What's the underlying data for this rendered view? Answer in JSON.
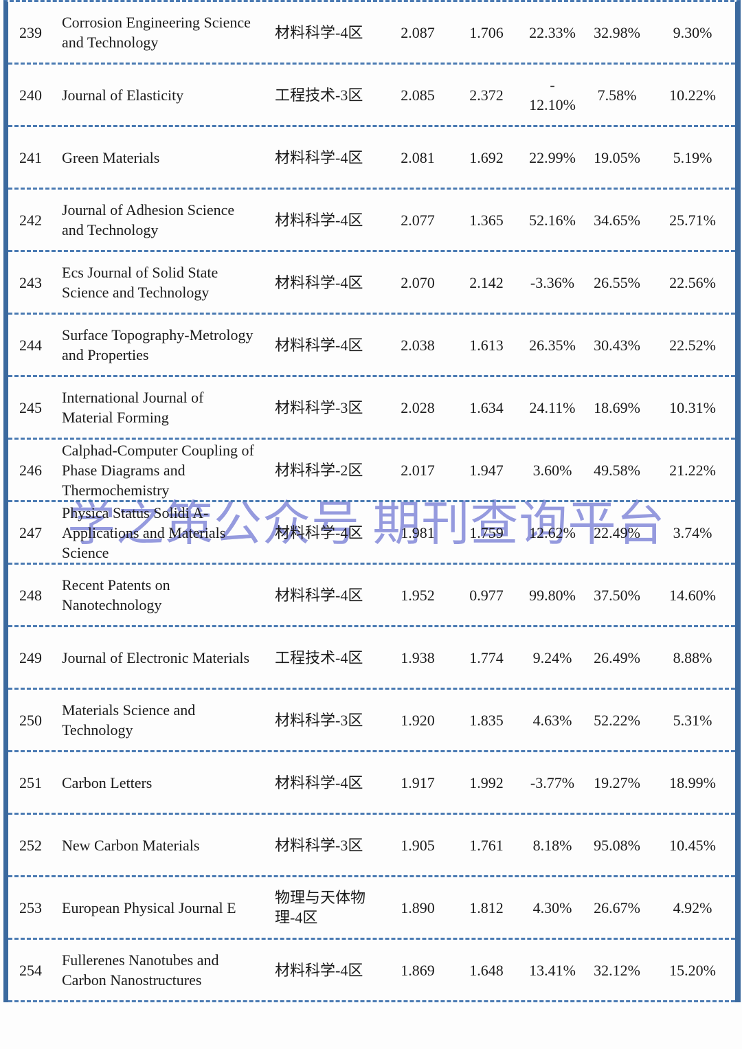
{
  "watermark": {
    "text": "学之策公众号 期刊查询平台",
    "color": "#8389d9"
  },
  "colors": {
    "side_border": "#3b699e",
    "dashed_line": "#4a7ab2",
    "text": "#1b1b1b"
  },
  "table": {
    "rows": [
      {
        "rank": "239",
        "journal": "Corrosion Engineering Science and Technology",
        "category": "材料科学-4区",
        "value1": "2.087",
        "value2": "1.706",
        "pct1": "22.33%",
        "pct2": "32.98%",
        "pct3": "9.30%"
      },
      {
        "rank": "240",
        "journal": "Journal of Elasticity",
        "category": "工程技术-3区",
        "value1": "2.085",
        "value2": "2.372",
        "pct1": "-\n12.10%",
        "pct2": "7.58%",
        "pct3": "10.22%"
      },
      {
        "rank": "241",
        "journal": "Green Materials",
        "category": "材料科学-4区",
        "value1": "2.081",
        "value2": "1.692",
        "pct1": "22.99%",
        "pct2": "19.05%",
        "pct3": "5.19%"
      },
      {
        "rank": "242",
        "journal": "Journal of Adhesion Science and Technology",
        "category": "材料科学-4区",
        "value1": "2.077",
        "value2": "1.365",
        "pct1": "52.16%",
        "pct2": "34.65%",
        "pct3": "25.71%"
      },
      {
        "rank": "243",
        "journal": "Ecs Journal of Solid State Science and Technology",
        "category": "材料科学-4区",
        "value1": "2.070",
        "value2": "2.142",
        "pct1": "-3.36%",
        "pct2": "26.55%",
        "pct3": "22.56%"
      },
      {
        "rank": "244",
        "journal": "Surface Topography-Metrology and Properties",
        "category": "材料科学-4区",
        "value1": "2.038",
        "value2": "1.613",
        "pct1": "26.35%",
        "pct2": "30.43%",
        "pct3": "22.52%"
      },
      {
        "rank": "245",
        "journal": "International Journal of Material Forming",
        "category": "材料科学-3区",
        "value1": "2.028",
        "value2": "1.634",
        "pct1": "24.11%",
        "pct2": "18.69%",
        "pct3": "10.31%"
      },
      {
        "rank": "246",
        "journal": "Calphad-Computer Coupling of Phase Diagrams and Thermochemistry",
        "category": "材料科学-2区",
        "value1": "2.017",
        "value2": "1.947",
        "pct1": "3.60%",
        "pct2": "49.58%",
        "pct3": "21.22%"
      },
      {
        "rank": "247",
        "journal": "Physica Status Solidi A-Applications and Materials Science",
        "category": "材料科学-4区",
        "value1": "1.981",
        "value2": "1.759",
        "pct1": "12.62%",
        "pct2": "22.49%",
        "pct3": "3.74%"
      },
      {
        "rank": "248",
        "journal": "Recent Patents on Nanotechnology",
        "category": "材料科学-4区",
        "value1": "1.952",
        "value2": "0.977",
        "pct1": "99.80%",
        "pct2": "37.50%",
        "pct3": "14.60%"
      },
      {
        "rank": "249",
        "journal": "Journal of Electronic Materials",
        "category": "工程技术-4区",
        "value1": "1.938",
        "value2": "1.774",
        "pct1": "9.24%",
        "pct2": "26.49%",
        "pct3": "8.88%"
      },
      {
        "rank": "250",
        "journal": "Materials Science and Technology",
        "category": "材料科学-3区",
        "value1": "1.920",
        "value2": "1.835",
        "pct1": "4.63%",
        "pct2": "52.22%",
        "pct3": "5.31%"
      },
      {
        "rank": "251",
        "journal": "Carbon Letters",
        "category": "材料科学-4区",
        "value1": "1.917",
        "value2": "1.992",
        "pct1": "-3.77%",
        "pct2": "19.27%",
        "pct3": "18.99%"
      },
      {
        "rank": "252",
        "journal": "New Carbon Materials",
        "category": "材料科学-3区",
        "value1": "1.905",
        "value2": "1.761",
        "pct1": "8.18%",
        "pct2": "95.08%",
        "pct3": "10.45%"
      },
      {
        "rank": "253",
        "journal": "European Physical Journal E",
        "category": "物理与天体物理-4区",
        "value1": "1.890",
        "value2": "1.812",
        "pct1": "4.30%",
        "pct2": "26.67%",
        "pct3": "4.92%"
      },
      {
        "rank": "254",
        "journal": "Fullerenes Nanotubes and Carbon Nanostructures",
        "category": "材料科学-4区",
        "value1": "1.869",
        "value2": "1.648",
        "pct1": "13.41%",
        "pct2": "32.12%",
        "pct3": "15.20%"
      }
    ]
  }
}
